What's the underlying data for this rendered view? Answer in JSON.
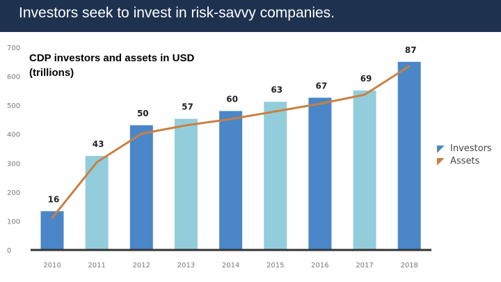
{
  "slide": {
    "title": "Investors seek to invest in risk-savvy companies."
  },
  "chart_data": {
    "type": "bar",
    "title": "CDP investors and assets in USD (trillions)",
    "categories": [
      "2010",
      "2011",
      "2012",
      "2013",
      "2014",
      "2015",
      "2016",
      "2017",
      "2018"
    ],
    "ylim": [
      0,
      700
    ],
    "yticks": [
      0,
      100,
      200,
      300,
      400,
      500,
      600,
      700
    ],
    "series": [
      {
        "name": "Investors",
        "type": "bar",
        "values": [
          134,
          325,
          431,
          453,
          480,
          512,
          526,
          551,
          650
        ],
        "color_dark": "#4a86c8",
        "color_light": "#93cddb"
      },
      {
        "name": "Assets",
        "type": "line",
        "values": [
          16,
          43,
          50,
          57,
          60,
          63,
          67,
          69,
          87
        ],
        "color": "#c98042"
      }
    ],
    "legend_position": "right",
    "grid": false
  }
}
